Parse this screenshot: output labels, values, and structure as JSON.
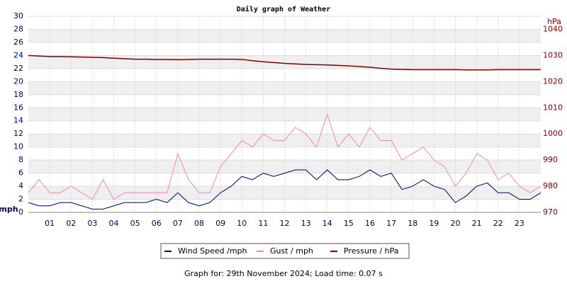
{
  "chart_data": {
    "type": "line",
    "title": "Daily graph of Weather",
    "y_label": "mph",
    "y2_label": "hPa",
    "x": [
      0,
      0.5,
      1,
      1.5,
      2,
      2.5,
      3,
      3.5,
      4,
      4.5,
      5,
      5.5,
      6,
      6.5,
      7,
      7.5,
      8,
      8.5,
      9,
      9.5,
      10,
      10.5,
      11,
      11.5,
      12,
      12.5,
      13,
      13.5,
      14,
      14.5,
      15,
      15.5,
      16,
      16.5,
      17,
      17.5,
      18,
      18.5,
      19,
      19.5,
      20,
      20.5,
      21,
      21.5,
      22,
      22.5,
      23,
      23.5,
      24
    ],
    "xlim": [
      0,
      24
    ],
    "xticks": [
      {
        "value": 1,
        "label": "01"
      },
      {
        "value": 2,
        "label": "02"
      },
      {
        "value": 3,
        "label": "03"
      },
      {
        "value": 4,
        "label": "04"
      },
      {
        "value": 5,
        "label": "05"
      },
      {
        "value": 6,
        "label": "06"
      },
      {
        "value": 7,
        "label": "07"
      },
      {
        "value": 8,
        "label": "08"
      },
      {
        "value": 9,
        "label": "09"
      },
      10,
      11,
      12,
      13,
      14,
      15,
      16,
      17,
      18,
      19,
      20,
      21,
      22,
      23
    ],
    "ylim": [
      0,
      30
    ],
    "yticks": [
      0,
      2,
      4,
      6,
      8,
      10,
      12,
      14,
      16,
      18,
      20,
      22,
      24,
      26,
      28,
      30
    ],
    "y2lim": [
      970,
      1045
    ],
    "y2ticks": [
      970,
      980,
      990,
      1000,
      1010,
      1020,
      1030,
      1040
    ],
    "grid": true,
    "series": [
      {
        "name": "Wind Speed /mph",
        "color": "#000066",
        "values": [
          1.5,
          1,
          1,
          1.5,
          1.5,
          1,
          0.5,
          0.5,
          1,
          1.5,
          1.5,
          1.5,
          2,
          1.5,
          3,
          1.5,
          1,
          1.5,
          3,
          4,
          5.5,
          5,
          6,
          5.5,
          6,
          6.5,
          6.5,
          5,
          6.5,
          5,
          5,
          5.5,
          6.5,
          5.5,
          6,
          3.5,
          4,
          5,
          4,
          3.5,
          1.5,
          2.5,
          4,
          4.5,
          3,
          3,
          2,
          2,
          3
        ]
      },
      {
        "name": "Gust / mph",
        "color": "#f488b0",
        "values": [
          3,
          5,
          3,
          3,
          4,
          3,
          2,
          5,
          2,
          3,
          3,
          3,
          3,
          3,
          9,
          5,
          3,
          3,
          7,
          9,
          11,
          10,
          12,
          11,
          11,
          13,
          12,
          10,
          15,
          10,
          12,
          10,
          13,
          11,
          11,
          8,
          9,
          10,
          8,
          7,
          4,
          6,
          9,
          8,
          5,
          6,
          4,
          3,
          4
        ]
      },
      {
        "name": "Pressure / hPa",
        "color": "#800000",
        "axis": "y2",
        "values": [
          1030,
          1029.8,
          1029.6,
          1029.6,
          1029.5,
          1029.4,
          1029.3,
          1029.2,
          1029,
          1028.8,
          1028.6,
          1028.6,
          1028.5,
          1028.5,
          1028.4,
          1028.5,
          1028.6,
          1028.6,
          1028.6,
          1028.6,
          1028.5,
          1028,
          1027.6,
          1027.3,
          1027,
          1026.8,
          1026.6,
          1026.5,
          1026.4,
          1026.2,
          1026,
          1025.8,
          1025.5,
          1025.1,
          1024.8,
          1024.7,
          1024.6,
          1024.6,
          1024.6,
          1024.6,
          1024.6,
          1024.5,
          1024.5,
          1024.5,
          1024.6,
          1024.6,
          1024.6,
          1024.6,
          1024.6
        ]
      }
    ],
    "footer": "Graph for: 29th November 2024; Load time: 0.07 s"
  }
}
